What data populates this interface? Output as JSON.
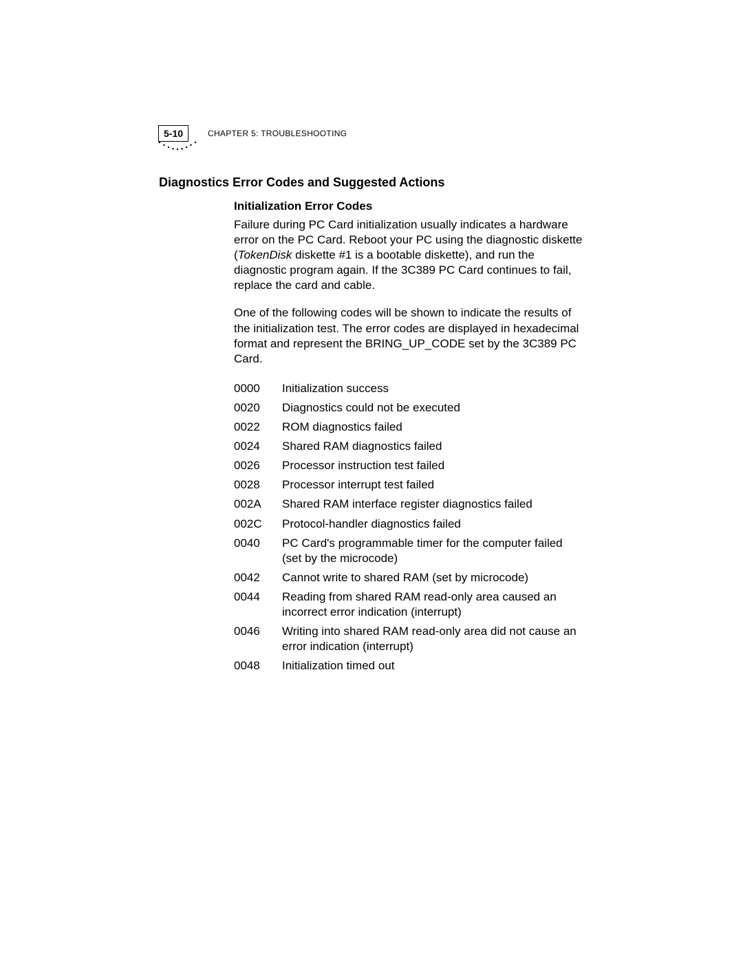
{
  "header": {
    "page_number": "5-10",
    "chapter_prefix": "C",
    "chapter_word": "HAPTER",
    "chapter_num": " 5: T",
    "chapter_rest": "ROUBLESHOOTING"
  },
  "headings": {
    "main": "Diagnostics Error Codes and Suggested Actions",
    "sub": "Initialization Error Codes"
  },
  "paragraphs": {
    "p1a": "Failure during PC Card initialization usually indicates a hardware error on the PC Card. Reboot your PC using the diagnostic diskette (",
    "p1_italic": "TokenDisk",
    "p1b": " diskette #1 is a bootable diskette), and run the diagnostic program again. If the 3C389 PC Card continues to fail, replace the card and cable.",
    "p2": "One of the following codes will be shown to indicate the results of the initialization test. The error codes are displayed in hexadecimal format and represent the BRING_UP_CODE set by the 3C389 PC Card."
  },
  "codes": [
    {
      "code": "0000",
      "desc": "Initialization success"
    },
    {
      "code": "0020",
      "desc": "Diagnostics could not be executed"
    },
    {
      "code": "0022",
      "desc": "ROM diagnostics failed"
    },
    {
      "code": "0024",
      "desc": "Shared RAM diagnostics failed"
    },
    {
      "code": "0026",
      "desc": "Processor instruction test failed"
    },
    {
      "code": "0028",
      "desc": "Processor interrupt test failed"
    },
    {
      "code": "002A",
      "desc": "Shared RAM interface register diagnostics failed"
    },
    {
      "code": "002C",
      "desc": "Protocol-handler diagnostics failed"
    },
    {
      "code": "0040",
      "desc": "PC Card's programmable timer for the computer failed (set by the microcode)"
    },
    {
      "code": "0042",
      "desc": "Cannot write to shared RAM (set by microcode)"
    },
    {
      "code": "0044",
      "desc": "Reading from shared RAM read-only area caused an incorrect error indication (interrupt)"
    },
    {
      "code": "0046",
      "desc": "Writing into shared RAM read-only area did not cause an error indication (interrupt)"
    },
    {
      "code": "0048",
      "desc": "Initialization timed out"
    }
  ],
  "dots": {
    "count": 9,
    "color": "#000000",
    "arc_width": 56,
    "arc_height": 10
  }
}
